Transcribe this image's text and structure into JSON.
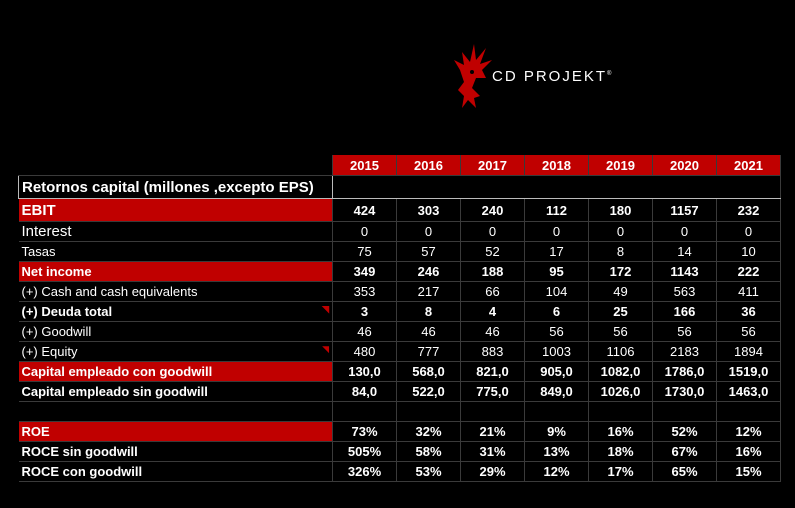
{
  "logo": {
    "brand": "CD PROJEKT",
    "trademark": "®",
    "icon": "red-cat-logo-icon",
    "color": "#c00000"
  },
  "table": {
    "title": "Retornos capital (millones ,excepto EPS)",
    "years": [
      "2015",
      "2016",
      "2017",
      "2018",
      "2019",
      "2020",
      "2021"
    ],
    "rows": [
      {
        "label": "EBIT",
        "values": [
          "424",
          "303",
          "240",
          "112",
          "180",
          "1157",
          "232"
        ]
      },
      {
        "label": "Interest",
        "values": [
          "0",
          "0",
          "0",
          "0",
          "0",
          "0",
          "0"
        ]
      },
      {
        "label": "Tasas",
        "values": [
          "75",
          "57",
          "52",
          "17",
          "8",
          "14",
          "10"
        ]
      },
      {
        "label": "Net income",
        "values": [
          "349",
          "246",
          "188",
          "95",
          "172",
          "1143",
          "222"
        ]
      },
      {
        "label": "(+) Cash and cash equivalents",
        "values": [
          "353",
          "217",
          "66",
          "104",
          "49",
          "563",
          "411"
        ]
      },
      {
        "label": "(+) Deuda total",
        "values": [
          "3",
          "8",
          "4",
          "6",
          "25",
          "166",
          "36"
        ]
      },
      {
        "label": "(+) Goodwill",
        "values": [
          "46",
          "46",
          "46",
          "56",
          "56",
          "56",
          "56"
        ]
      },
      {
        "label": "(+) Equity",
        "values": [
          "480",
          "777",
          "883",
          "1003",
          "1106",
          "2183",
          "1894"
        ]
      },
      {
        "label": "Capital empleado con goodwill",
        "values": [
          "130,0",
          "568,0",
          "821,0",
          "905,0",
          "1082,0",
          "1786,0",
          "1519,0"
        ]
      },
      {
        "label": "Capital empleado sin goodwill",
        "values": [
          "84,0",
          "522,0",
          "775,0",
          "849,0",
          "1026,0",
          "1730,0",
          "1463,0"
        ]
      },
      {
        "label": "ROE",
        "values": [
          "73%",
          "32%",
          "21%",
          "9%",
          "16%",
          "52%",
          "12%"
        ]
      },
      {
        "label": "ROCE sin goodwill",
        "values": [
          "505%",
          "58%",
          "31%",
          "13%",
          "18%",
          "67%",
          "16%"
        ]
      },
      {
        "label": "ROCE con goodwill",
        "values": [
          "326%",
          "53%",
          "29%",
          "12%",
          "17%",
          "65%",
          "15%"
        ]
      }
    ]
  }
}
